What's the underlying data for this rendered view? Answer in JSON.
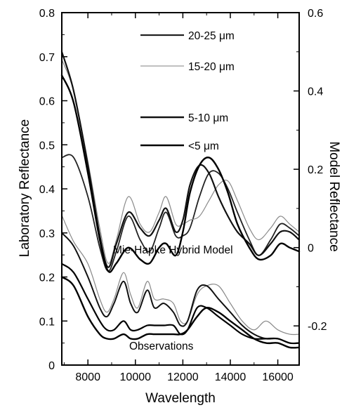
{
  "chart_data": {
    "type": "line",
    "title": "",
    "xlabel": "Wavelength",
    "ylabel_left": "Laboratory Reflectance",
    "ylabel_right": "Model Reflectance",
    "xlim": [
      6900,
      16900
    ],
    "ylim_left": [
      0,
      0.8
    ],
    "ylim_right": [
      -0.3,
      0.6
    ],
    "x_ticks": [
      8000,
      10000,
      12000,
      14000,
      16000
    ],
    "x_tick_labels": [
      "8000",
      "10000",
      "12000",
      "14000",
      "16000"
    ],
    "y_left_ticks": [
      0,
      0.1,
      0.2,
      0.3,
      0.4,
      0.5,
      0.6,
      0.7,
      0.8
    ],
    "y_left_tick_labels": [
      "0",
      "0.1",
      "0.2",
      "0.3",
      "0.4",
      "0.5",
      "0.6",
      "0.7",
      "0.8"
    ],
    "y_right_ticks": [
      -0.2,
      0,
      0.2,
      0.4,
      0.6
    ],
    "y_right_tick_labels": [
      "-0.2",
      "0",
      "0.2",
      "0.4",
      "0.6"
    ],
    "legend_position": "top-center",
    "annotations": [
      "Mie-Hapke Hybrid Model",
      "Observations"
    ],
    "series": [
      {
        "name": "20-25 μm",
        "group": "Mie-Hapke Hybrid Model",
        "axis": "right",
        "color": "#222222",
        "width": 1.8,
        "x": [
          6900,
          7400,
          8000,
          8500,
          8850,
          9200,
          9700,
          10200,
          10600,
          11000,
          11300,
          11700,
          12000,
          12300,
          12700,
          13100,
          13500,
          13900,
          14300,
          14800,
          15200,
          15700,
          16100,
          16500,
          16900
        ],
        "y": [
          0.23,
          0.23,
          0.13,
          0.0,
          -0.06,
          -0.01,
          0.08,
          0.02,
          -0.01,
          0.05,
          0.09,
          0.03,
          0.03,
          0.05,
          0.13,
          0.19,
          0.19,
          0.15,
          0.09,
          0.02,
          -0.02,
          0.02,
          0.06,
          0.05,
          0.03
        ]
      },
      {
        "name": "15-20 μm",
        "group": "Mie-Hapke Hybrid Model",
        "axis": "right",
        "color": "#8a8a8a",
        "width": 1.2,
        "x": [
          6900,
          7400,
          8000,
          8500,
          8850,
          9200,
          9700,
          10200,
          10600,
          11000,
          11300,
          11700,
          12000,
          12300,
          12700,
          13100,
          13500,
          13900,
          14300,
          14800,
          15200,
          15700,
          16100,
          16500,
          16900
        ],
        "y": [
          0.48,
          0.4,
          0.22,
          0.05,
          -0.04,
          0.02,
          0.13,
          0.06,
          0.04,
          0.09,
          0.13,
          0.06,
          0.06,
          0.07,
          0.08,
          0.12,
          0.16,
          0.17,
          0.12,
          0.05,
          0.02,
          0.05,
          0.08,
          0.06,
          0.04
        ]
      },
      {
        "name": "5-10 μm",
        "group": "Mie-Hapke Hybrid Model",
        "axis": "right",
        "color": "#111111",
        "width": 2.2,
        "x": [
          6900,
          7400,
          8000,
          8500,
          8850,
          9200,
          9700,
          10200,
          10600,
          11000,
          11300,
          11700,
          12000,
          12300,
          12700,
          13100,
          13500,
          13900,
          14300,
          14800,
          15200,
          15700,
          16100,
          16500,
          16900
        ],
        "y": [
          0.5,
          0.4,
          0.21,
          0.03,
          -0.05,
          0.01,
          0.09,
          0.05,
          0.03,
          0.07,
          0.1,
          0.04,
          0.07,
          0.16,
          0.21,
          0.19,
          0.13,
          0.08,
          0.04,
          0.01,
          -0.02,
          0.01,
          0.04,
          0.04,
          0.02
        ]
      },
      {
        "name": "<5 μm",
        "group": "Mie-Hapke Hybrid Model",
        "axis": "right",
        "color": "#000000",
        "width": 2.4,
        "x": [
          6900,
          7400,
          8000,
          8500,
          8850,
          9200,
          9700,
          10200,
          10600,
          11000,
          11300,
          11700,
          12000,
          12300,
          12700,
          13100,
          13500,
          13900,
          14300,
          14800,
          15200,
          15700,
          16100,
          16500,
          16900
        ],
        "y": [
          0.44,
          0.37,
          0.19,
          0.02,
          -0.06,
          -0.04,
          0.0,
          -0.03,
          -0.04,
          0.0,
          0.01,
          -0.02,
          0.04,
          0.14,
          0.21,
          0.23,
          0.2,
          0.14,
          0.06,
          0.0,
          -0.03,
          -0.02,
          0.01,
          0.0,
          -0.01
        ]
      },
      {
        "name": "",
        "group": "Observations",
        "axis": "left",
        "color": "#888888",
        "width": 1.2,
        "x": [
          6900,
          7400,
          8000,
          8500,
          8800,
          9100,
          9500,
          9800,
          10100,
          10500,
          10800,
          11200,
          11600,
          11900,
          12200,
          12600,
          13000,
          13500,
          14000,
          14500,
          15000,
          15500,
          16000,
          16500,
          16900
        ],
        "y": [
          0.34,
          0.28,
          0.23,
          0.15,
          0.12,
          0.15,
          0.21,
          0.16,
          0.13,
          0.19,
          0.15,
          0.15,
          0.14,
          0.1,
          0.1,
          0.16,
          0.18,
          0.18,
          0.14,
          0.1,
          0.08,
          0.1,
          0.08,
          0.07,
          0.07
        ]
      },
      {
        "name": "",
        "group": "Observations",
        "axis": "left",
        "color": "#111111",
        "width": 2.0,
        "x": [
          6900,
          7400,
          8000,
          8500,
          8800,
          9100,
          9500,
          9800,
          10100,
          10500,
          10800,
          11200,
          11600,
          11900,
          12200,
          12600,
          13000,
          13500,
          14000,
          14500,
          15000,
          15500,
          16000,
          16500,
          16900
        ],
        "y": [
          0.3,
          0.27,
          0.2,
          0.13,
          0.11,
          0.14,
          0.19,
          0.14,
          0.12,
          0.17,
          0.13,
          0.14,
          0.12,
          0.09,
          0.1,
          0.17,
          0.18,
          0.15,
          0.12,
          0.09,
          0.07,
          0.06,
          0.06,
          0.05,
          0.05
        ]
      },
      {
        "name": "",
        "group": "Observations",
        "axis": "left",
        "color": "#000000",
        "width": 2.2,
        "x": [
          6900,
          7400,
          8000,
          8500,
          8800,
          9100,
          9500,
          9800,
          10100,
          10500,
          10800,
          11200,
          11600,
          11900,
          12200,
          12600,
          13000,
          13500,
          14000,
          14500,
          15000,
          15500,
          16000,
          16500,
          16900
        ],
        "y": [
          0.23,
          0.21,
          0.15,
          0.1,
          0.08,
          0.08,
          0.1,
          0.08,
          0.08,
          0.09,
          0.09,
          0.09,
          0.09,
          0.07,
          0.08,
          0.13,
          0.13,
          0.11,
          0.09,
          0.07,
          0.06,
          0.06,
          0.06,
          0.05,
          0.05
        ]
      },
      {
        "name": "",
        "group": "Observations",
        "axis": "left",
        "color": "#000000",
        "width": 2.4,
        "x": [
          6900,
          7400,
          8000,
          8500,
          8800,
          9100,
          9500,
          9800,
          10100,
          10500,
          10800,
          11200,
          11600,
          11900,
          12200,
          12600,
          13000,
          13500,
          14000,
          14500,
          15000,
          15500,
          16000,
          16500,
          16900
        ],
        "y": [
          0.2,
          0.18,
          0.11,
          0.07,
          0.06,
          0.06,
          0.07,
          0.06,
          0.06,
          0.07,
          0.07,
          0.07,
          0.07,
          0.07,
          0.08,
          0.11,
          0.13,
          0.12,
          0.1,
          0.08,
          0.06,
          0.05,
          0.05,
          0.04,
          0.04
        ]
      }
    ],
    "legend": [
      {
        "label": "20-25 μm",
        "color": "#222222",
        "width": 2.2
      },
      {
        "label": "15-20 μm",
        "color": "#9a9a9a",
        "width": 1.2
      },
      {
        "label": "5-10 μm",
        "color": "#111111",
        "width": 2.4
      },
      {
        "label": "<5 μm",
        "color": "#000000",
        "width": 2.6
      }
    ]
  }
}
